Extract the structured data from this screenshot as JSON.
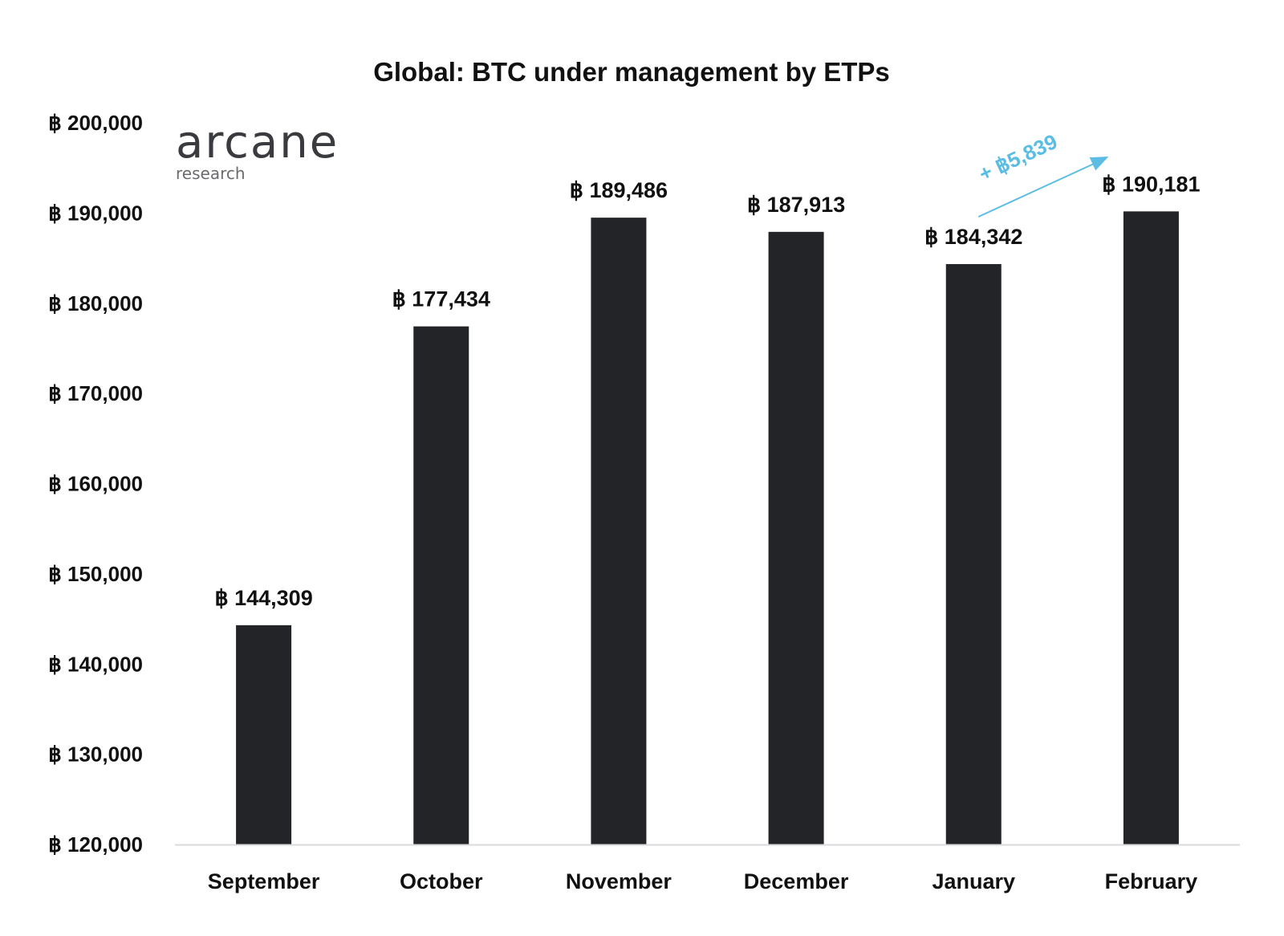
{
  "chart_data": {
    "type": "bar",
    "title": "Global: BTC under management by ETPs",
    "xlabel": "",
    "ylabel": "",
    "currency_symbol": "฿",
    "categories": [
      "September",
      "October",
      "November",
      "December",
      "January",
      "February"
    ],
    "values": [
      144309,
      177434,
      189486,
      187913,
      184342,
      190181
    ],
    "value_labels": [
      "฿ 144,309",
      "฿ 177,434",
      "฿ 189,486",
      "฿ 187,913",
      "฿ 184,342",
      "฿ 190,181"
    ],
    "ylim": [
      120000,
      200000
    ],
    "yticks": [
      120000,
      130000,
      140000,
      150000,
      160000,
      170000,
      180000,
      190000,
      200000
    ],
    "ytick_labels": [
      "฿ 120,000",
      "฿ 130,000",
      "฿ 140,000",
      "฿ 150,000",
      "฿ 160,000",
      "฿ 170,000",
      "฿ 180,000",
      "฿ 190,000",
      "฿ 200,000"
    ],
    "grid": false,
    "annotation": {
      "text": "+ ฿5,839",
      "from_category": "January",
      "to_category": "February",
      "color": "#5bbde3"
    }
  },
  "logo": {
    "name": "arcane",
    "tagline": "research"
  },
  "colors": {
    "bar": "#222428",
    "axis": "#d9dadd",
    "text": "#111111",
    "annotation": "#5bbde3"
  }
}
